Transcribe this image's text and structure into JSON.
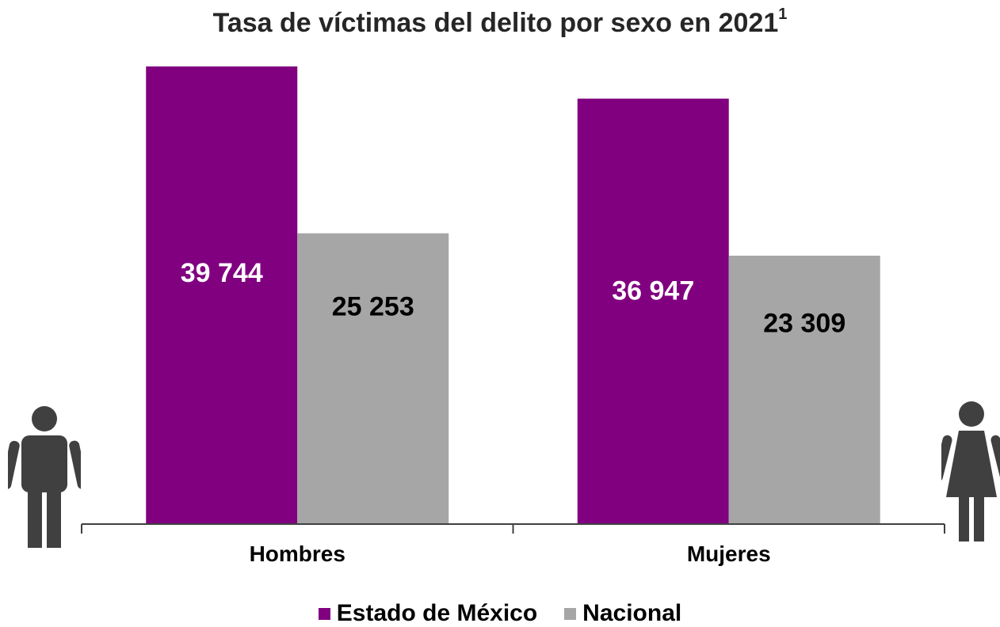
{
  "chart_data": {
    "type": "bar",
    "title": "Tasa de víctimas del delito por sexo en 2021",
    "title_superscript": "1",
    "categories": [
      "Hombres",
      "Mujeres"
    ],
    "series": [
      {
        "name": "Estado de México",
        "values": [
          39744,
          36947
        ],
        "labels": [
          "39 744",
          "36 947"
        ],
        "color": "#800080",
        "label_color": "#ffffff"
      },
      {
        "name": "Nacional",
        "values": [
          25253,
          23309
        ],
        "labels": [
          "25 253",
          "23 309"
        ],
        "color": "#a6a6a6",
        "label_color": "#000000"
      }
    ],
    "ylim": [
      0,
      44000
    ],
    "grid": false,
    "legend_position": "bottom",
    "xlabel": "",
    "ylabel": ""
  },
  "icons": {
    "left": "man-icon",
    "right": "woman-icon",
    "color": "#404040"
  }
}
